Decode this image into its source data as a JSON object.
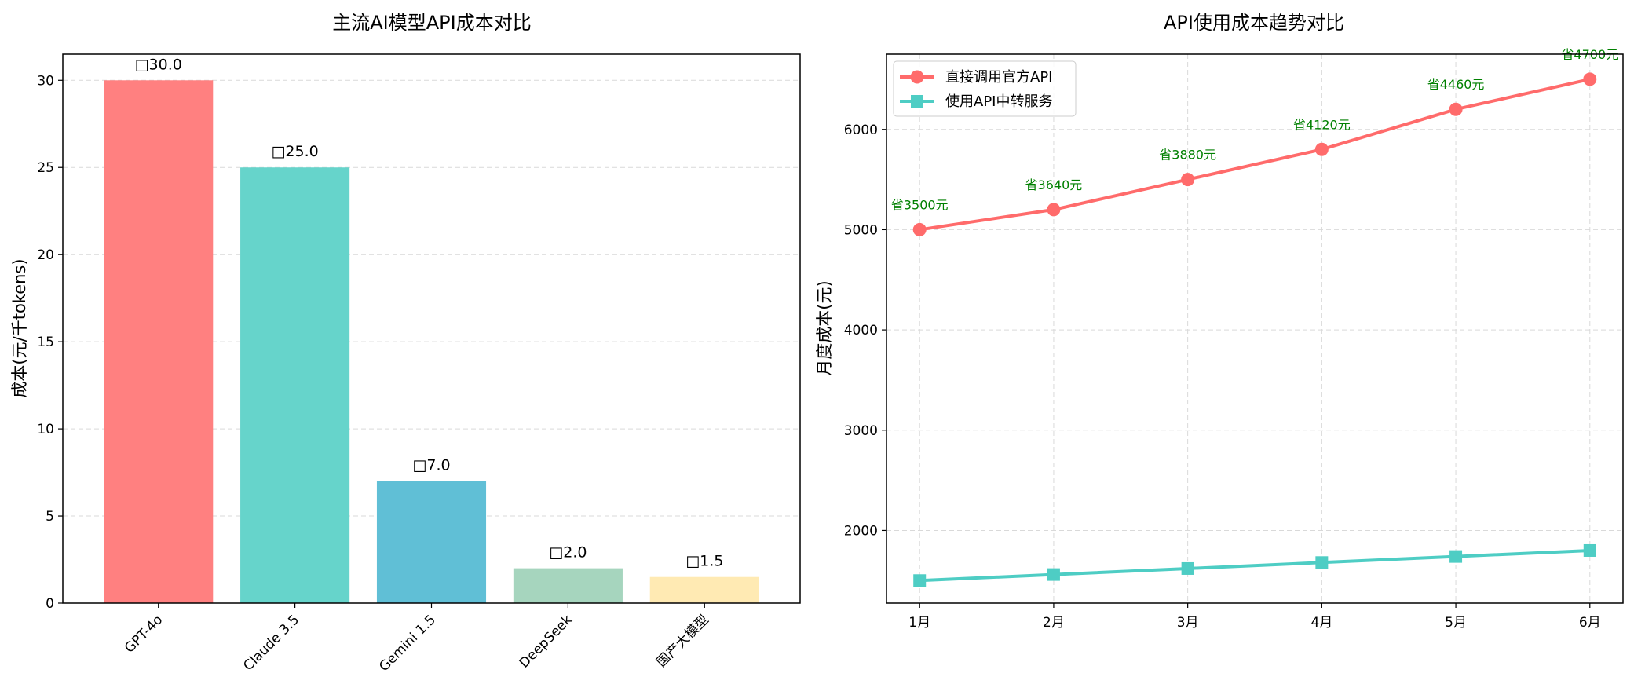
{
  "chart_data": [
    {
      "type": "bar",
      "title": "主流AI模型API成本对比",
      "ylabel": "成本(元/千tokens)",
      "xlabel": "",
      "categories": [
        "GPT-4o",
        "Claude 3.5",
        "Gemini 1.5",
        "DeepSeek",
        "国产大模型"
      ],
      "values": [
        30.0,
        25.0,
        7.0,
        2.0,
        1.5
      ],
      "value_labels": [
        "□30.0",
        "□25.0",
        "□7.0",
        "□2.0",
        "□1.5"
      ],
      "colors": [
        "#ff8080",
        "#66d4cb",
        "#60bfd6",
        "#a6d5be",
        "#ffeab3"
      ],
      "ylim": [
        0,
        31.5
      ],
      "yticks": [
        0,
        5,
        10,
        15,
        20,
        25,
        30
      ],
      "grid": "y-dashed"
    },
    {
      "type": "line",
      "title": "API使用成本趋势对比",
      "ylabel": "月度成本(元)",
      "xlabel": "",
      "categories": [
        "1月",
        "2月",
        "3月",
        "4月",
        "5月",
        "6月"
      ],
      "series": [
        {
          "name": "直接调用官方API",
          "values": [
            5000,
            5200,
            5500,
            5800,
            6200,
            6500
          ],
          "color": "#ff6b6b",
          "marker": "circle"
        },
        {
          "name": "使用API中转服务",
          "values": [
            1500,
            1560,
            1620,
            1680,
            1740,
            1800
          ],
          "color": "#4ecdc4",
          "marker": "square"
        }
      ],
      "annotations": [
        "省3500元",
        "省3640元",
        "省3880元",
        "省4120元",
        "省4460元",
        "省4700元"
      ],
      "annotation_color": "#008000",
      "ylim": [
        1275,
        6750
      ],
      "yticks": [
        2000,
        3000,
        4000,
        5000,
        6000
      ],
      "grid": "both-dashed",
      "legend": "top-left"
    }
  ]
}
